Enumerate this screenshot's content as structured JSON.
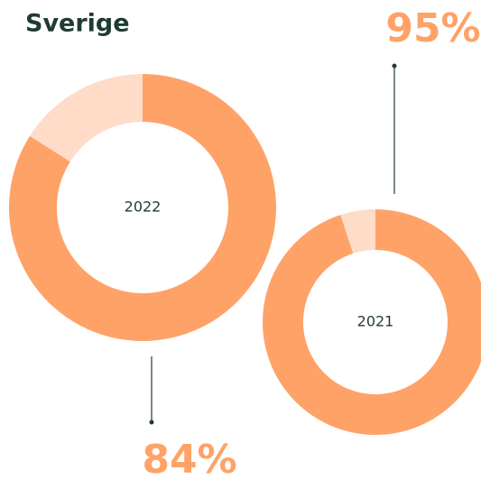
{
  "title": "Sverige",
  "chart_data": [
    {
      "type": "pie",
      "label": "2022",
      "values": [
        84,
        16
      ],
      "value_labels": [
        "84%",
        null
      ],
      "colors": [
        "#ffa268",
        "#ffdcc8"
      ]
    },
    {
      "type": "pie",
      "label": "2021",
      "values": [
        95,
        5
      ],
      "value_labels": [
        "95%",
        null
      ],
      "colors": [
        "#ffa268",
        "#ffdcc8"
      ]
    }
  ]
}
